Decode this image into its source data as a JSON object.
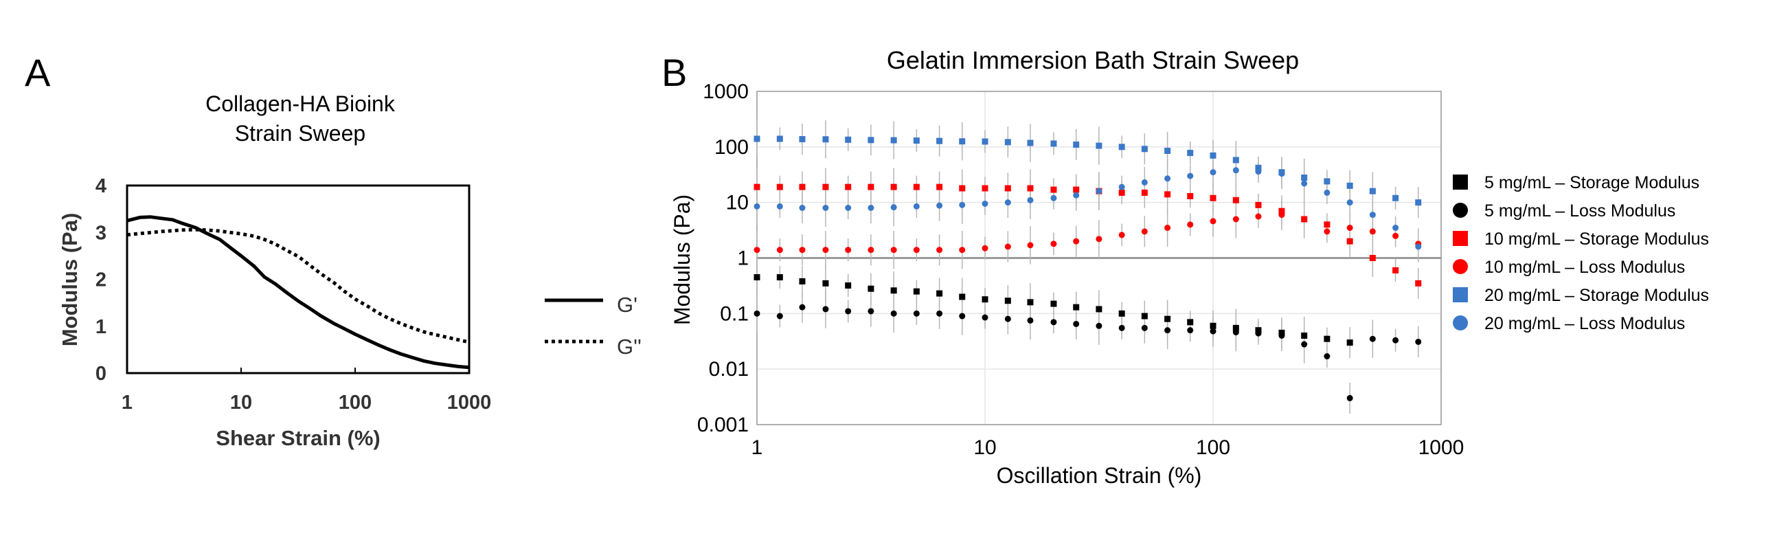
{
  "chart_data": [
    {
      "panel": "A",
      "type": "line",
      "title": [
        "Collagen-HA Bioink",
        "Strain Sweep"
      ],
      "xlabel": "Shear Strain (%)",
      "ylabel": "Modulus (Pa)",
      "xscale": "log",
      "xlim": [
        1,
        1000
      ],
      "ylim": [
        0,
        4
      ],
      "xticks": [
        {
          "v": 1,
          "label": "1"
        },
        {
          "v": 10,
          "label": "10"
        },
        {
          "v": 100,
          "label": "100"
        },
        {
          "v": 1000,
          "label": "1000"
        }
      ],
      "yticks": [
        {
          "v": 0,
          "label": "0"
        },
        {
          "v": 1,
          "label": "1"
        },
        {
          "v": 2,
          "label": "2"
        },
        {
          "v": 3,
          "label": "3"
        },
        {
          "v": 4,
          "label": "4"
        }
      ],
      "legend_position": "right",
      "series": [
        {
          "name": "G'",
          "style": "solid",
          "x": [
            1,
            1.3,
            1.6,
            2,
            2.5,
            3,
            4,
            5,
            6.5,
            8,
            10,
            13,
            16,
            20,
            25,
            32,
            40,
            50,
            65,
            80,
            100,
            130,
            160,
            200,
            250,
            320,
            400,
            500,
            650,
            800,
            1000
          ],
          "y": [
            3.25,
            3.32,
            3.33,
            3.3,
            3.27,
            3.2,
            3.1,
            2.98,
            2.85,
            2.68,
            2.5,
            2.28,
            2.05,
            1.9,
            1.72,
            1.53,
            1.38,
            1.22,
            1.06,
            0.95,
            0.83,
            0.7,
            0.6,
            0.5,
            0.41,
            0.33,
            0.26,
            0.21,
            0.17,
            0.14,
            0.12
          ]
        },
        {
          "name": "G''",
          "style": "dotted",
          "x": [
            1,
            1.5,
            2,
            3,
            4,
            5,
            6.5,
            8,
            10,
            13,
            16,
            20,
            25,
            32,
            40,
            50,
            65,
            80,
            100,
            130,
            160,
            200,
            250,
            320,
            400,
            500,
            650,
            800,
            1000
          ],
          "y": [
            2.95,
            2.99,
            3.02,
            3.05,
            3.06,
            3.05,
            3.03,
            3.0,
            2.97,
            2.92,
            2.85,
            2.75,
            2.62,
            2.48,
            2.3,
            2.12,
            1.93,
            1.75,
            1.58,
            1.42,
            1.28,
            1.16,
            1.06,
            0.96,
            0.88,
            0.82,
            0.76,
            0.71,
            0.66
          ]
        }
      ]
    },
    {
      "panel": "B",
      "type": "scatter",
      "title": "Gelatin Immersion Bath Strain Sweep",
      "xlabel": "Oscillation Strain (%)",
      "ylabel": "Modulus (Pa)",
      "xscale": "log",
      "yscale": "log",
      "xlim": [
        1,
        1000
      ],
      "ylim": [
        0.001,
        1000
      ],
      "xticks": [
        {
          "v": 1,
          "label": "1"
        },
        {
          "v": 10,
          "label": "10"
        },
        {
          "v": 100,
          "label": "100"
        },
        {
          "v": 1000,
          "label": "1000"
        }
      ],
      "yticks": [
        {
          "v": 0.001,
          "label": "0.001"
        },
        {
          "v": 0.01,
          "label": "0.01"
        },
        {
          "v": 0.1,
          "label": "0.1"
        },
        {
          "v": 1,
          "label": "1"
        },
        {
          "v": 10,
          "label": "10"
        },
        {
          "v": 100,
          "label": "100"
        },
        {
          "v": 1000,
          "label": "1000"
        }
      ],
      "reference_line": 1,
      "legend_position": "right",
      "x": [
        1,
        1.26,
        1.58,
        2,
        2.51,
        3.16,
        3.98,
        5.01,
        6.31,
        7.94,
        10,
        12.6,
        15.8,
        20,
        25.1,
        31.6,
        39.8,
        50.1,
        63.1,
        79.4,
        100,
        126,
        158,
        200,
        251,
        316,
        398,
        501,
        631,
        794
      ],
      "series": [
        {
          "name": "5 mg/mL – Storage Modulus",
          "color": "#000000",
          "marker": "square",
          "values": [
            0.45,
            0.45,
            0.38,
            0.35,
            0.32,
            0.28,
            0.26,
            0.25,
            0.23,
            0.2,
            0.18,
            0.17,
            0.16,
            0.15,
            0.13,
            0.12,
            0.1,
            0.09,
            0.08,
            0.07,
            0.06,
            0.055,
            0.05,
            0.045,
            0.04,
            0.035,
            0.03,
            null,
            null,
            null
          ]
        },
        {
          "name": "5 mg/mL – Loss Modulus",
          "color": "#000000",
          "marker": "circle",
          "values": [
            0.1,
            0.09,
            0.13,
            0.12,
            0.11,
            0.11,
            0.1,
            0.1,
            0.1,
            0.09,
            0.085,
            0.08,
            0.075,
            0.07,
            0.065,
            0.06,
            0.055,
            0.055,
            0.05,
            0.05,
            0.048,
            0.046,
            0.044,
            0.04,
            0.028,
            0.017,
            0.003,
            0.035,
            0.033,
            0.031
          ]
        },
        {
          "name": "10 mg/mL – Storage Modulus",
          "color": "#ff0000",
          "marker": "square",
          "values": [
            19,
            19,
            19,
            19,
            19,
            19,
            19,
            19,
            19,
            18,
            18,
            18,
            18,
            17,
            17,
            16,
            15,
            15,
            14,
            13,
            12,
            11,
            9,
            7,
            5,
            4,
            2,
            1,
            0.6,
            0.35
          ]
        },
        {
          "name": "10 mg/mL – Loss Modulus",
          "color": "#ff0000",
          "marker": "circle",
          "values": [
            1.4,
            1.4,
            1.4,
            1.4,
            1.4,
            1.4,
            1.4,
            1.4,
            1.4,
            1.4,
            1.5,
            1.6,
            1.7,
            1.8,
            2,
            2.2,
            2.6,
            3,
            3.5,
            4,
            4.6,
            5,
            5.6,
            6,
            5,
            3,
            3.5,
            3,
            2.5,
            1.8
          ]
        },
        {
          "name": "20 mg/mL – Storage Modulus",
          "color": "#3b78c8",
          "marker": "square",
          "values": [
            140,
            140,
            138,
            137,
            135,
            133,
            132,
            130,
            128,
            126,
            125,
            122,
            118,
            115,
            110,
            105,
            100,
            92,
            85,
            78,
            70,
            58,
            42,
            35,
            28,
            24,
            20,
            16,
            12,
            10
          ]
        },
        {
          "name": "20 mg/mL – Loss Modulus",
          "color": "#3b78c8",
          "marker": "circle",
          "values": [
            8.5,
            8.5,
            8,
            8,
            8,
            8,
            8.2,
            8.5,
            8.8,
            9,
            9.5,
            10,
            11,
            12,
            13.5,
            16,
            19,
            23,
            27,
            30,
            35,
            38,
            36,
            33,
            22,
            15,
            10,
            6,
            3.5,
            1.6
          ]
        }
      ]
    }
  ],
  "panel_labels": [
    "A",
    "B"
  ]
}
